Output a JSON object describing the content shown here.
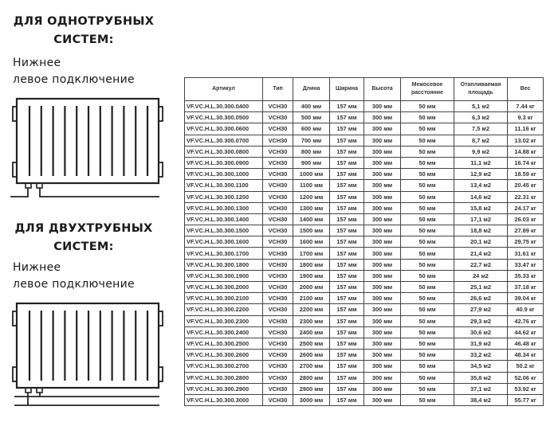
{
  "sections": [
    {
      "title_line1": "ДЛЯ ОДНОТРУБНЫХ",
      "title_line2": "СИСТЕМ:",
      "sub_line1": "Нижнее",
      "sub_line2": "левое подключение",
      "diagram": "radiator-one-pipe-bottom-left"
    },
    {
      "title_line1": "ДЛЯ ДВУХТРУБНЫХ",
      "title_line2": "СИСТЕМ:",
      "sub_line1": "Нижнее",
      "sub_line2": "левое подключение",
      "diagram": "radiator-two-pipe-bottom-left"
    }
  ],
  "table": {
    "headers": [
      "Артикул",
      "Тип",
      "Длина",
      "Ширина",
      "Высота",
      "Межосевое расстояние",
      "Отапливаемая площадь",
      "Вес"
    ],
    "rows": [
      [
        "VF.VC.H.L.30.300.0400",
        "VCH30",
        "400 мм",
        "157 мм",
        "300 мм",
        "50 мм",
        "5,1 м2",
        "7.44 кг"
      ],
      [
        "VF.VC.H.L.30.300.0500",
        "VCH30",
        "500 мм",
        "157 мм",
        "300 мм",
        "50 мм",
        "6,3 м2",
        "9.3 кг"
      ],
      [
        "VF.VC.H.L.30.300.0600",
        "VCH30",
        "600 мм",
        "157 мм",
        "300 мм",
        "50 мм",
        "7,5 м2",
        "11.16 кг"
      ],
      [
        "VF.VC.H.L.30.300.0700",
        "VCH30",
        "700 мм",
        "157 мм",
        "300 мм",
        "50 мм",
        "8,7 м2",
        "13.02 кг"
      ],
      [
        "VF.VC.H.L.30.300.0800",
        "VCH30",
        "800 мм",
        "157 мм",
        "300 мм",
        "50 мм",
        "9,9 м2",
        "14.88 кг"
      ],
      [
        "VF.VC.H.L.30.300.0900",
        "VCH30",
        "900 мм",
        "157 мм",
        "300 мм",
        "50 мм",
        "11,1 м2",
        "16.74 кг"
      ],
      [
        "VF.VC.H.L.30.300.1000",
        "VCH30",
        "1000 мм",
        "157 мм",
        "300 мм",
        "50 мм",
        "12,9 м2",
        "18.59 кг"
      ],
      [
        "VF.VC.H.L.30.300.1100",
        "VCH30",
        "1100 мм",
        "157 мм",
        "300 мм",
        "50 мм",
        "13,4 м2",
        "20.45 кг"
      ],
      [
        "VF.VC.H.L.30.300.1200",
        "VCH30",
        "1200 мм",
        "157 мм",
        "300 мм",
        "50 мм",
        "14,6 м2",
        "22.31 кг"
      ],
      [
        "VF.VC.H.L.30.300.1300",
        "VCH30",
        "1300 мм",
        "157 мм",
        "300 мм",
        "50 мм",
        "15,8 м2",
        "24.17 кг"
      ],
      [
        "VF.VC.H.L.30.300.1400",
        "VCH30",
        "1400 мм",
        "157 мм",
        "300 мм",
        "50 мм",
        "17,1 м2",
        "26.03 кг"
      ],
      [
        "VF.VC.H.L.30.300.1500",
        "VCH30",
        "1500 мм",
        "157 мм",
        "300 мм",
        "50 мм",
        "18,8 м2",
        "27.89 кг"
      ],
      [
        "VF.VC.H.L.30.300.1600",
        "VCH30",
        "1600 мм",
        "157 мм",
        "300 мм",
        "50 мм",
        "20,1 м2",
        "29.75 кг"
      ],
      [
        "VF.VC.H.L.30.300.1700",
        "VCH30",
        "1700 мм",
        "157 мм",
        "300 мм",
        "50 мм",
        "21,4 м2",
        "31.61 кг"
      ],
      [
        "VF.VC.H.L.30.300.1800",
        "VCH30",
        "1800 мм",
        "157 мм",
        "300 мм",
        "50 мм",
        "22,7 м2",
        "33.47 кг"
      ],
      [
        "VF.VC.H.L.30.300.1900",
        "VCH30",
        "1900 мм",
        "157 мм",
        "300 мм",
        "50 мм",
        "24 м2",
        "35.33 кг"
      ],
      [
        "VF.VC.H.L.30.300.2000",
        "VCH30",
        "2000 мм",
        "157 мм",
        "300 мм",
        "50 мм",
        "25,1 м2",
        "37.18 кг"
      ],
      [
        "VF.VC.H.L.30.300.2100",
        "VCH30",
        "2100 мм",
        "157 мм",
        "300 мм",
        "50 мм",
        "26,6 м2",
        "39.04 кг"
      ],
      [
        "VF.VC.H.L.30.300.2200",
        "VCH30",
        "2200 мм",
        "157 мм",
        "300 мм",
        "50 мм",
        "27,9 м2",
        "40.9 кг"
      ],
      [
        "VF.VC.H.L.30.300.2300",
        "VCH30",
        "2300 мм",
        "157 мм",
        "300 мм",
        "50 мм",
        "29,3 м2",
        "42.76 кг"
      ],
      [
        "VF.VC.H.L.30.300.2400",
        "VCH30",
        "2400 мм",
        "157 мм",
        "300 мм",
        "50 мм",
        "30,6 м2",
        "44.62 кг"
      ],
      [
        "VF.VC.H.L.30.300.2500",
        "VCH30",
        "2500 мм",
        "157 мм",
        "300 мм",
        "50 мм",
        "31,9 м2",
        "46.48 кг"
      ],
      [
        "VF.VC.H.L.30.300.2600",
        "VCH30",
        "2600 мм",
        "157 мм",
        "300 мм",
        "50 мм",
        "33,2 м2",
        "48.34 кг"
      ],
      [
        "VF.VC.H.L.30.300.2700",
        "VCH30",
        "2700 мм",
        "157 мм",
        "300 мм",
        "50 мм",
        "34,5 м2",
        "50.2 кг"
      ],
      [
        "VF.VC.H.L.30.300.2800",
        "VCH30",
        "2800 мм",
        "157 мм",
        "300 мм",
        "50 мм",
        "35,8 м2",
        "52.06 кг"
      ],
      [
        "VF.VC.H.L.30.300.2900",
        "VCH30",
        "2900 мм",
        "157 мм",
        "300 мм",
        "50 мм",
        "37,1 м2",
        "53.92 кг"
      ],
      [
        "VF.VC.H.L.30.300.3000",
        "VCH30",
        "3000 мм",
        "157 мм",
        "300 мм",
        "50 мм",
        "38,4 м2",
        "55.77 кг"
      ]
    ]
  }
}
